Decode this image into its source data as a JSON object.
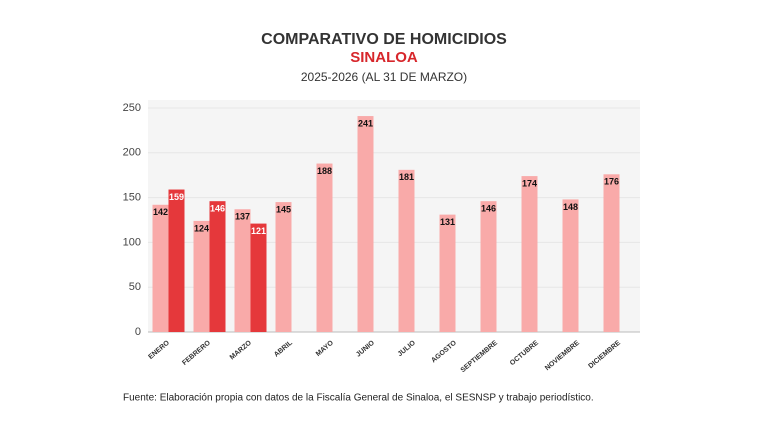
{
  "chart_data": {
    "type": "bar",
    "title": "COMPARATIVO DE HOMICIDIOS",
    "subtitle": "SINALOA",
    "period": "2025-2026 (AL 31 DE MARZO)",
    "source": "Fuente: Elaboración propia con datos de la Fiscalía General de Sinaloa, el SESNSP y trabajo periodístico.",
    "categories": [
      "ENERO",
      "FEBRERO",
      "MARZO",
      "ABRIL",
      "MAYO",
      "JUNIO",
      "JULIO",
      "AGOSTO",
      "SEPTIEMBRE",
      "OCTUBRE",
      "NOVIEMBRE",
      "DICIEMBRE"
    ],
    "series": [
      {
        "color": "#f9aaa9",
        "values": [
          142,
          124,
          137,
          145,
          188,
          241,
          181,
          131,
          146,
          174,
          148,
          176
        ]
      },
      {
        "color": "#e5383b",
        "values": [
          159,
          146,
          121,
          null,
          null,
          null,
          null,
          null,
          null,
          null,
          null,
          null
        ]
      }
    ],
    "ylim": [
      0,
      250
    ],
    "yticks": [
      0,
      50,
      100,
      150,
      200,
      250
    ],
    "grid": true
  }
}
